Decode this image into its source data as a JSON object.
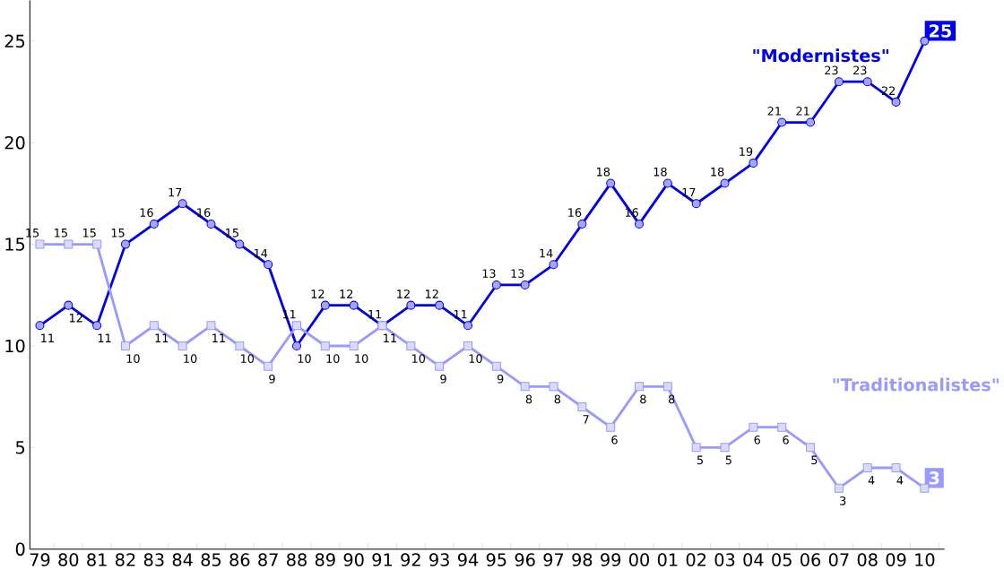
{
  "chart_data": {
    "type": "line",
    "categories": [
      "79",
      "80",
      "81",
      "82",
      "83",
      "84",
      "85",
      "86",
      "87",
      "88",
      "89",
      "90",
      "91",
      "92",
      "93",
      "94",
      "95",
      "96",
      "97",
      "98",
      "99",
      "00",
      "01",
      "02",
      "03",
      "04",
      "05",
      "06",
      "07",
      "08",
      "09",
      "10"
    ],
    "series": [
      {
        "name": "\"Modernistes\"",
        "color": "#0000ee",
        "marker": "circle",
        "values": [
          11,
          12,
          11,
          15,
          16,
          17,
          16,
          15,
          14,
          10,
          12,
          12,
          11,
          12,
          12,
          11,
          13,
          13,
          14,
          16,
          18,
          16,
          18,
          17,
          18,
          19,
          21,
          21,
          23,
          23,
          22,
          25
        ]
      },
      {
        "name": "\"Traditionalistes\"",
        "color": "#9999ff",
        "marker": "square",
        "values": [
          15,
          15,
          15,
          10,
          11,
          10,
          11,
          10,
          9,
          11,
          10,
          10,
          11,
          10,
          9,
          10,
          9,
          8,
          8,
          7,
          6,
          8,
          8,
          5,
          5,
          6,
          6,
          5,
          3,
          4,
          4,
          3
        ]
      }
    ],
    "ylim": [
      0,
      27
    ],
    "yticks": [
      0,
      5,
      10,
      15,
      20,
      25
    ],
    "data_labels": true,
    "grid": false,
    "legend": false
  }
}
